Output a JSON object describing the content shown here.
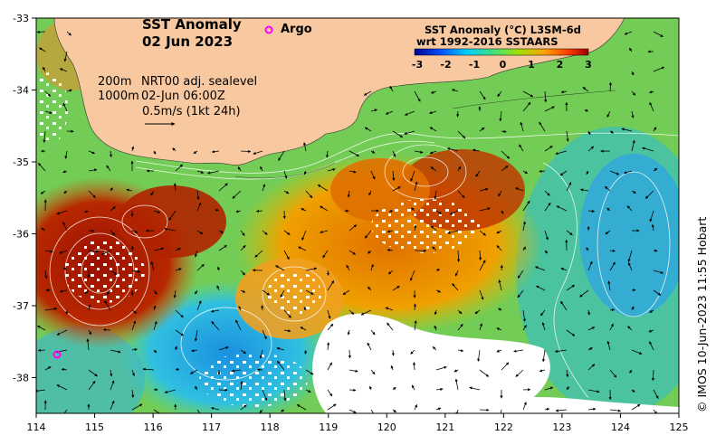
{
  "title": {
    "line1": "SST Anomaly",
    "line2": "02 Jun 2023"
  },
  "argo": {
    "label": "Argo",
    "color": "#ff00ff"
  },
  "info": {
    "depth1": "200m",
    "depth2": "1000m",
    "source": "NRT00 adj. sealevel",
    "time": "02-Jun 06:00Z",
    "velocity": "0.5m/s (1kt 24h)"
  },
  "legend": {
    "title1": "SST Anomaly (°C) L3SM-6d",
    "title2": "wrt 1992-2016 SSTAARS",
    "ticks": [
      "-3",
      "-2",
      "-1",
      "0",
      "1",
      "2",
      "3"
    ],
    "colors": [
      "#00008f",
      "#0050ff",
      "#00d0ff",
      "#40e080",
      "#a0e000",
      "#ffa000",
      "#ff4000",
      "#a00000"
    ]
  },
  "axes": {
    "x_ticks": [
      "114",
      "115",
      "116",
      "117",
      "118",
      "119",
      "120",
      "121",
      "122",
      "123",
      "124",
      "125"
    ],
    "y_ticks": [
      "-33",
      "-34",
      "-35",
      "-36",
      "-37",
      "-38"
    ]
  },
  "colors": {
    "land": "#f8c8a0",
    "no_data": "#ffffff"
  },
  "credit": "© IMOS 10-Jun-2023 11:55 Hobart"
}
